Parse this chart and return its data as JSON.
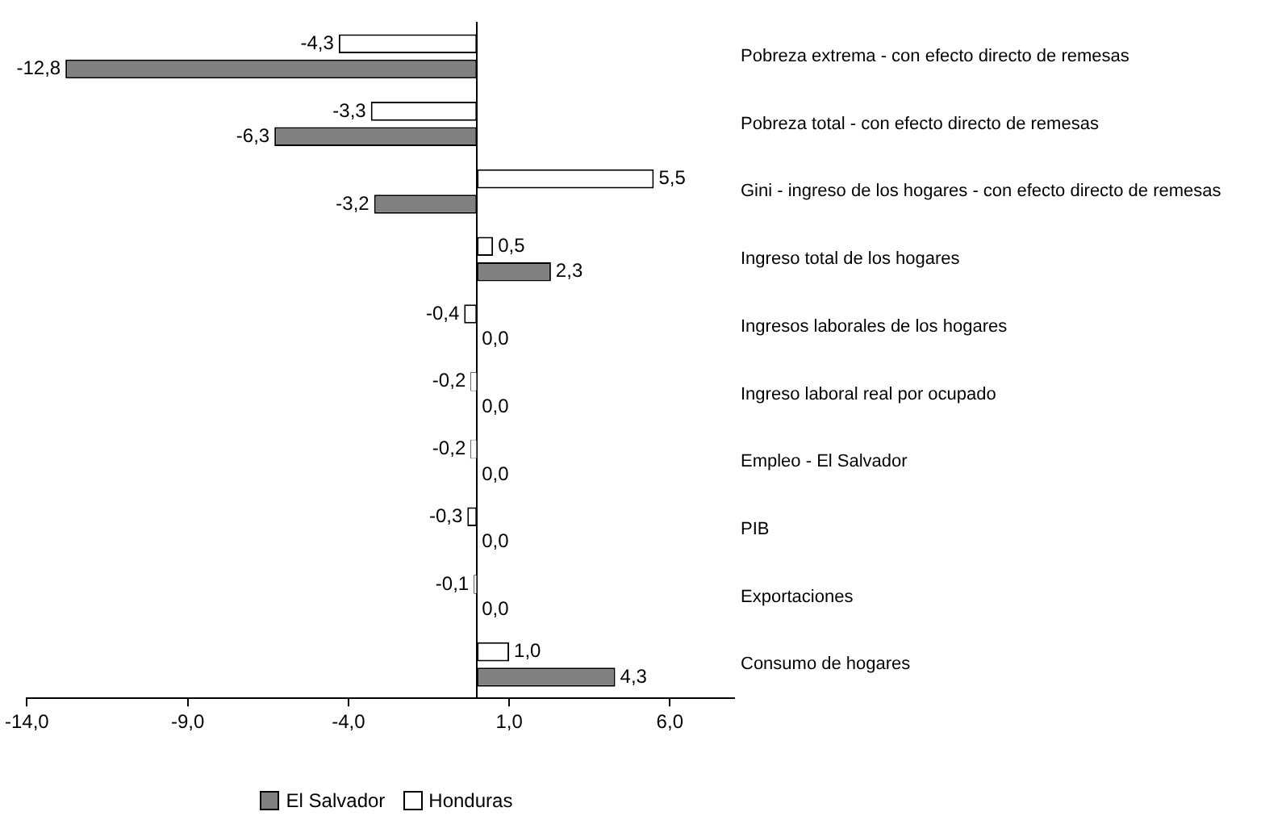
{
  "chart_data": {
    "type": "bar",
    "orientation": "horizontal",
    "categories": [
      "Pobreza extrema - con efecto directo de remesas",
      "Pobreza total - con efecto directo de remesas",
      "Gini - ingreso de los hogares - con efecto directo de remesas",
      "Ingreso total de los hogares",
      "Ingresos laborales de los hogares",
      "Ingreso laboral real por ocupado",
      "Empleo - El Salvador",
      "PIB",
      "Exportaciones",
      "Consumo de hogares"
    ],
    "series": [
      {
        "name": "Honduras",
        "color": "#ffffff",
        "values": [
          -4.3,
          -3.3,
          5.5,
          0.5,
          -0.4,
          -0.2,
          -0.2,
          -0.3,
          -0.1,
          1.0
        ],
        "value_labels": [
          "-4,3",
          "-3,3",
          "5,5",
          "0,5",
          "-0,4",
          "-0,2",
          "-0,2",
          "-0,3",
          "-0,1",
          "1,0"
        ]
      },
      {
        "name": "El Salvador",
        "color": "#808080",
        "values": [
          -12.8,
          -6.3,
          -3.2,
          2.3,
          0,
          0,
          0,
          0,
          0,
          4.3
        ],
        "value_labels": [
          "-12,8",
          "-6,3",
          "-3,2",
          "2,3",
          "0,0",
          "0,0",
          "0,0",
          "0,0",
          "0,0",
          "4,3"
        ]
      }
    ],
    "xlim": [
      -14,
      8
    ],
    "xticks": [
      {
        "value": -14,
        "label": "-14,0"
      },
      {
        "value": -9,
        "label": "-9,0"
      },
      {
        "value": -4,
        "label": "-4,0"
      },
      {
        "value": 1,
        "label": "1,0"
      },
      {
        "value": 6,
        "label": "6,0"
      }
    ],
    "grid": false,
    "legend": "bottom"
  }
}
